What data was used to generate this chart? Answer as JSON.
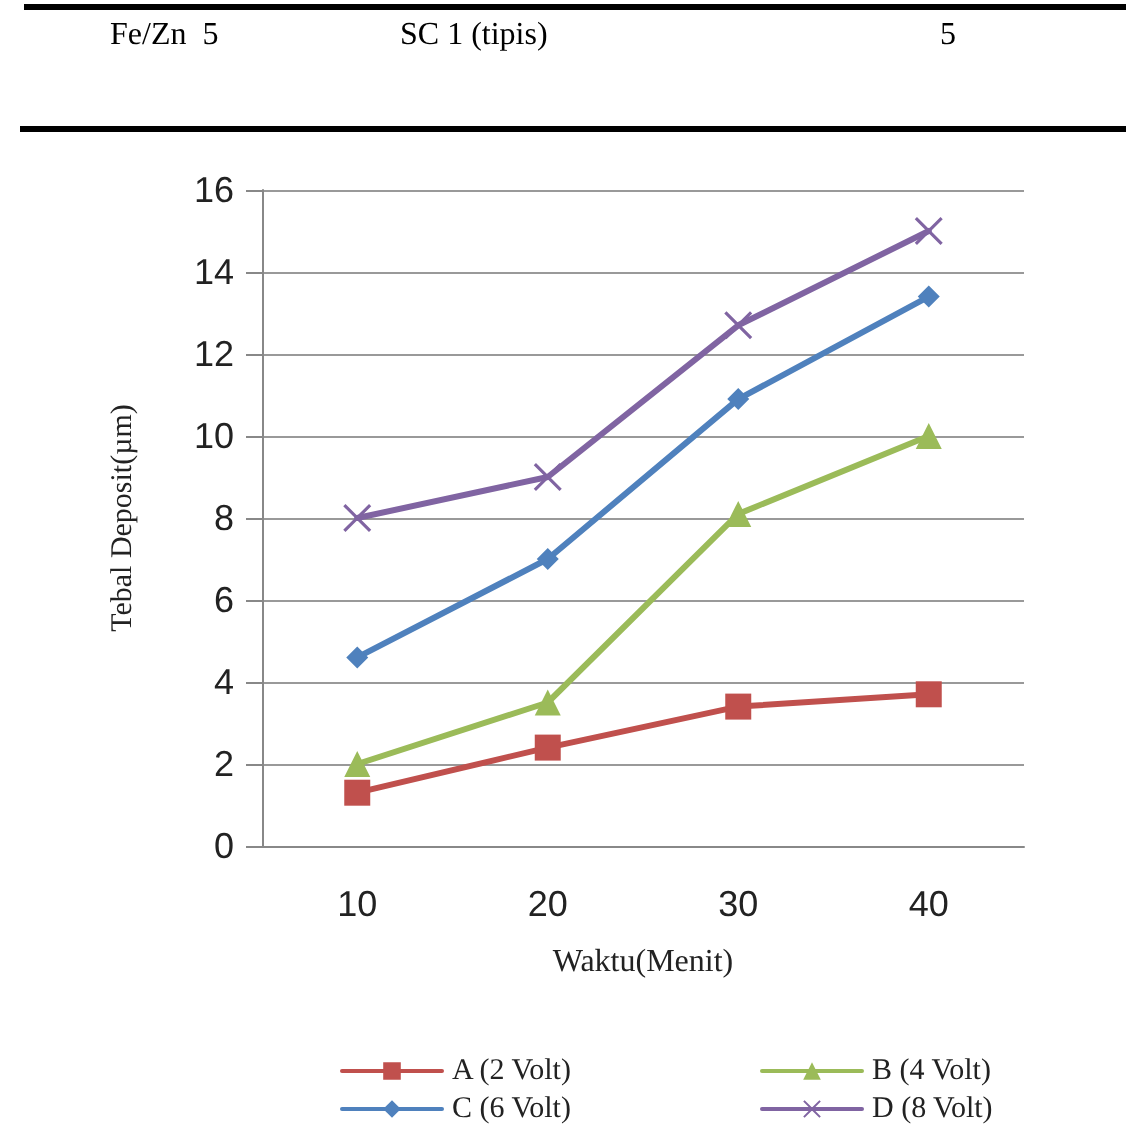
{
  "chart_data": {
    "type": "line",
    "xlabel": "Waktu(Menit)",
    "ylabel": "Tebal Deposit(µm)",
    "annotations": [
      "Fe/Zn  5",
      "SC 1 (tipis)",
      "5"
    ],
    "categories": [
      "10",
      "20",
      "30",
      "40"
    ],
    "series": [
      {
        "name": "A (2 Volt)",
        "color": "#c0504d",
        "marker": "square",
        "values": [
          1.3,
          2.4,
          3.4,
          3.7
        ]
      },
      {
        "name": "B (4 Volt)",
        "color": "#9bbb59",
        "marker": "triangle",
        "values": [
          2.0,
          3.5,
          8.1,
          10.0
        ]
      },
      {
        "name": "C (6 Volt)",
        "color": "#4f81bd",
        "marker": "diamond",
        "values": [
          4.6,
          7.0,
          10.9,
          13.4
        ]
      },
      {
        "name": "D (8 Volt)",
        "color": "#8064a2",
        "marker": "cross",
        "values": [
          8.0,
          9.0,
          12.7,
          15.0
        ]
      }
    ],
    "ylim": [
      0,
      16
    ],
    "yticks": [
      0,
      2,
      4,
      6,
      8,
      10,
      12,
      14,
      16
    ],
    "grid": "y",
    "legend": "bottom",
    "line_style": "solid"
  }
}
